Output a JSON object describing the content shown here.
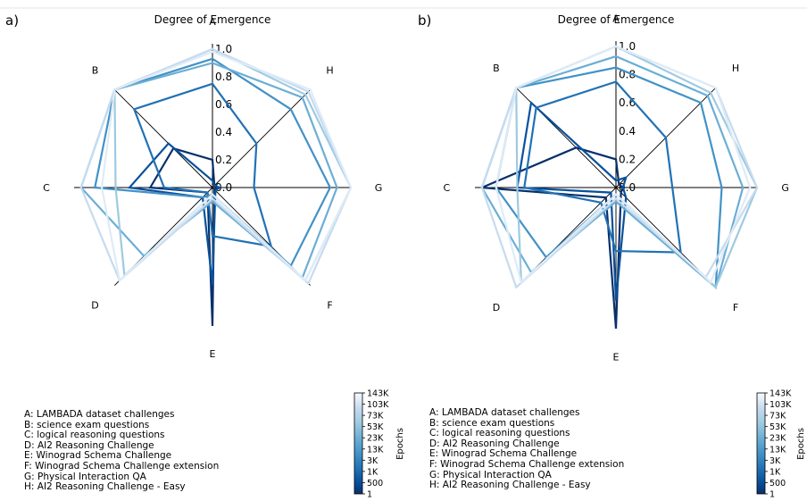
{
  "colors": {
    "dark": "#08306b",
    "light": "#deebf7",
    "spoke": "#000000"
  },
  "legend": {
    "entries": [
      "A: LAMBADA dataset challenges",
      "B: science exam questions",
      "C: logical reasoning questions",
      "D: AI2 Reasoning Challenge",
      "E: Winograd Schema Challenge",
      "F: Winograd Schema Challenge extension",
      "G: Physical Interaction QA",
      "H: AI2 Reasoning Challenge - Easy"
    ]
  },
  "colorbar": {
    "label": "Epochs",
    "ticks": [
      "143K",
      "103K",
      "73K",
      "53K",
      "23K",
      "13K",
      "3K",
      "1K",
      "500",
      "1"
    ]
  },
  "chart_data": [
    {
      "type": "radar",
      "panel_label": "a)",
      "title": "Degree of Emergence",
      "axes": [
        "H",
        "G",
        "F",
        "E",
        "D",
        "C",
        "B",
        "A"
      ],
      "radial_ticks": [
        "0.0",
        "0.2",
        "0.4",
        "0.6",
        "0.8",
        "1.0"
      ],
      "rlim": [
        0,
        1
      ],
      "series_by_epochs": "colorbar",
      "series": [
        {
          "name": "1",
          "values": [
            0.02,
            0.04,
            0.02,
            1.0,
            0.05,
            0.45,
            0.4,
            0.2
          ]
        },
        {
          "name": "500",
          "values": [
            0.02,
            0.05,
            0.03,
            0.7,
            0.1,
            0.6,
            0.45,
            0.05
          ]
        },
        {
          "name": "1K",
          "values": [
            0.45,
            0.3,
            0.6,
            0.35,
            0.05,
            0.35,
            0.8,
            0.75
          ]
        },
        {
          "name": "3K",
          "values": [
            0.8,
            0.85,
            0.8,
            0.05,
            0.1,
            0.85,
            1.0,
            0.93
          ]
        },
        {
          "name": "13K",
          "values": [
            0.92,
            0.9,
            0.92,
            0.1,
            0.7,
            0.95,
            1.0,
            0.9
          ]
        },
        {
          "name": "23K",
          "values": [
            0.95,
            1.0,
            0.95,
            0.05,
            0.9,
            0.7,
            1.0,
            1.0
          ]
        },
        {
          "name": "73K",
          "values": [
            0.98,
            1.0,
            0.98,
            0.08,
            0.95,
            0.95,
            1.0,
            1.0
          ]
        },
        {
          "name": "143K",
          "values": [
            1.0,
            1.0,
            0.95,
            0.05,
            0.95,
            0.8,
            1.0,
            0.98
          ]
        }
      ]
    },
    {
      "type": "radar",
      "panel_label": "b)",
      "title": "Degree of Emergence",
      "axes": [
        "H",
        "G",
        "F",
        "E",
        "D",
        "C",
        "B",
        "A"
      ],
      "radial_ticks": [
        "0.0",
        "0.2",
        "0.4",
        "0.6",
        "0.8",
        "1.0"
      ],
      "rlim": [
        0,
        1
      ],
      "series_by_epochs": "colorbar",
      "series": [
        {
          "name": "1",
          "values": [
            0.03,
            0.05,
            0.05,
            1.0,
            0.1,
            0.95,
            0.4,
            0.2
          ]
        },
        {
          "name": "500",
          "values": [
            0.1,
            0.05,
            0.1,
            0.8,
            0.05,
            0.7,
            0.85,
            0.05
          ]
        },
        {
          "name": "1K",
          "values": [
            0.5,
            0.4,
            0.65,
            0.45,
            0.15,
            0.65,
            0.8,
            0.75
          ]
        },
        {
          "name": "3K",
          "values": [
            0.85,
            0.75,
            1.0,
            0.05,
            0.7,
            0.85,
            1.0,
            0.85
          ]
        },
        {
          "name": "13K",
          "values": [
            0.92,
            0.9,
            1.0,
            0.1,
            0.85,
            0.95,
            1.0,
            0.93
          ]
        },
        {
          "name": "23K",
          "values": [
            0.95,
            1.0,
            1.0,
            0.05,
            0.95,
            0.7,
            1.0,
            1.0
          ]
        },
        {
          "name": "73K",
          "values": [
            1.0,
            1.0,
            0.9,
            0.08,
            1.0,
            0.95,
            1.0,
            1.0
          ]
        },
        {
          "name": "143K",
          "values": [
            1.0,
            0.95,
            0.95,
            0.05,
            0.95,
            0.85,
            1.0,
            1.0
          ]
        }
      ]
    }
  ]
}
